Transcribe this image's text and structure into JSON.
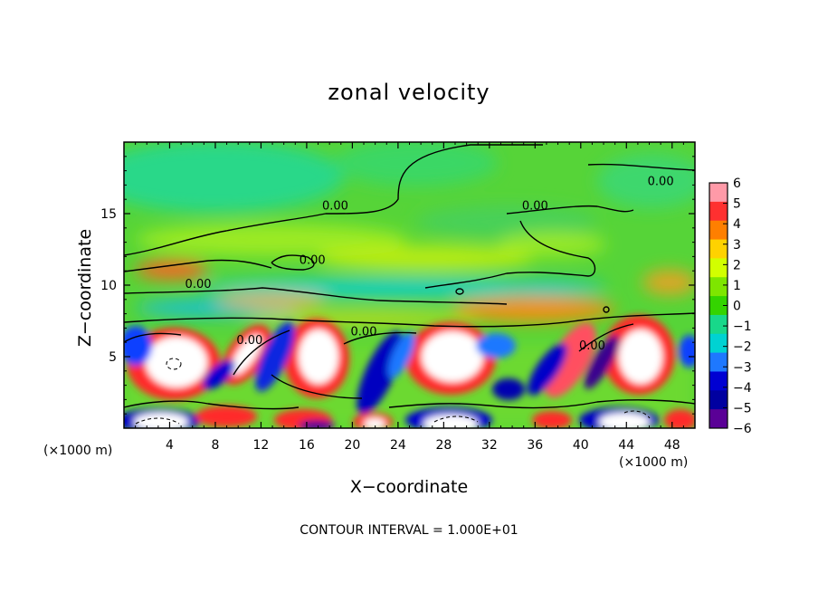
{
  "chart_data": {
    "type": "heatmap",
    "title": "zonal velocity",
    "xlabel": "X−coordinate",
    "ylabel": "Z−coordinate",
    "x_unit_left": "(×1000 m)",
    "x_unit_right": "(×1000 m)",
    "xlim": [
      0,
      50
    ],
    "ylim": [
      0,
      20
    ],
    "x_ticks": [
      4,
      8,
      12,
      16,
      20,
      24,
      28,
      32,
      36,
      40,
      44,
      48
    ],
    "y_ticks": [
      5,
      10,
      15
    ],
    "colorbar": {
      "ticks": [
        "6",
        "5",
        "4",
        "3",
        "2",
        "1",
        "0",
        "−1",
        "−2",
        "−3",
        "−4",
        "−5",
        "−6"
      ],
      "colors": [
        "#ff9aa8",
        "#ff3030",
        "#ff7f00",
        "#ffd200",
        "#d2ff00",
        "#7ee600",
        "#34d400",
        "#18d88a",
        "#00d2d2",
        "#1e78ff",
        "#0000d2",
        "#0000a0",
        "#5a0096"
      ]
    },
    "contour_labels": [
      {
        "text": "0.00",
        "x": 6.5,
        "y": 9.8
      },
      {
        "text": "0.00",
        "x": 11,
        "y": 5.9
      },
      {
        "text": "0.00",
        "x": 16.5,
        "y": 11.5
      },
      {
        "text": "0.00",
        "x": 18.5,
        "y": 15.3
      },
      {
        "text": "0.00",
        "x": 21,
        "y": 6.5
      },
      {
        "text": "0.00",
        "x": 36,
        "y": 15.3
      },
      {
        "text": "0.00",
        "x": 41,
        "y": 5.5
      },
      {
        "text": "0.00",
        "x": 47,
        "y": 17
      }
    ],
    "contour_note": "CONTOUR INTERVAL = 1.000E+01"
  }
}
